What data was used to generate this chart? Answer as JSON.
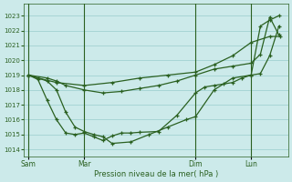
{
  "background_color": "#cceaea",
  "grid_color": "#99cccc",
  "line_color": "#2a6020",
  "xlabel": "Pression niveau de la mer( hPa )",
  "ylim": [
    1013.5,
    1023.8
  ],
  "yticks": [
    1014,
    1015,
    1016,
    1017,
    1018,
    1019,
    1020,
    1021,
    1022,
    1023
  ],
  "xtick_labels": [
    "Sam",
    "Mar",
    "Dim",
    "Lun"
  ],
  "xtick_positions": [
    0,
    36,
    108,
    144
  ],
  "vline_positions": [
    0,
    36,
    108,
    144
  ],
  "xlim": [
    -3,
    168
  ],
  "series": [
    {
      "x": [
        0,
        6,
        18,
        36,
        54,
        72,
        90,
        108,
        120,
        132,
        144,
        156,
        163
      ],
      "y": [
        1019.0,
        1018.8,
        1018.5,
        1018.3,
        1018.5,
        1018.8,
        1019.0,
        1019.2,
        1019.7,
        1020.3,
        1021.2,
        1021.6,
        1021.6
      ]
    },
    {
      "x": [
        0,
        6,
        12,
        18,
        24,
        30,
        36,
        42,
        48,
        54,
        60,
        66,
        72,
        84,
        96,
        108,
        114,
        120,
        126,
        132,
        138,
        144,
        150,
        156,
        162
      ],
      "y": [
        1019.0,
        1018.7,
        1017.3,
        1016.0,
        1015.1,
        1015.0,
        1015.1,
        1014.85,
        1014.6,
        1014.9,
        1015.1,
        1015.1,
        1015.15,
        1015.2,
        1016.3,
        1017.8,
        1018.2,
        1018.3,
        1018.4,
        1018.5,
        1018.8,
        1019.0,
        1019.1,
        1020.3,
        1022.3
      ]
    },
    {
      "x": [
        0,
        12,
        18,
        24,
        30,
        36,
        42,
        48,
        54,
        66,
        78,
        90,
        102,
        108,
        120,
        132,
        144,
        150,
        156,
        162
      ],
      "y": [
        1019.0,
        1018.6,
        1018.0,
        1016.5,
        1015.5,
        1015.2,
        1015.0,
        1014.85,
        1014.4,
        1014.5,
        1015.0,
        1015.5,
        1016.0,
        1016.2,
        1018.0,
        1018.8,
        1019.0,
        1022.3,
        1022.7,
        1023.0
      ]
    },
    {
      "x": [
        0,
        12,
        18,
        24,
        36,
        48,
        60,
        72,
        84,
        96,
        108,
        120,
        132,
        144,
        150,
        156,
        162
      ],
      "y": [
        1019.0,
        1018.8,
        1018.6,
        1018.3,
        1018.0,
        1017.8,
        1017.9,
        1018.1,
        1018.3,
        1018.6,
        1019.0,
        1019.4,
        1019.6,
        1019.8,
        1020.4,
        1022.9,
        1021.7
      ]
    }
  ]
}
